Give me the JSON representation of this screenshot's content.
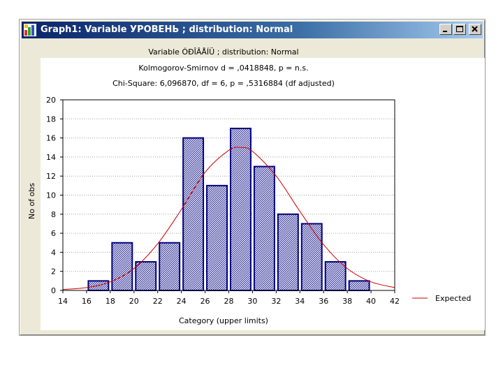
{
  "window": {
    "title": "Graph1: Variable УРОВЕНЬ ; distribution: Normal"
  },
  "chart_data": {
    "type": "bar",
    "title": "Variable ÓÐÎÂÅÍÜ ; distribution: Normal",
    "subtitle_1": "Kolmogorov-Smirnov d = ,0418848, p = n.s.",
    "subtitle_2": "Chi-Square: 6,096870, df = 6, p = ,5316884 (df adjusted)",
    "xlabel": "Category (upper limits)",
    "ylabel": "No of obs",
    "xlim": [
      14,
      42
    ],
    "ylim": [
      0,
      20
    ],
    "x_ticks": [
      14,
      16,
      18,
      20,
      22,
      24,
      26,
      28,
      30,
      32,
      34,
      36,
      38,
      40,
      42
    ],
    "y_ticks": [
      0,
      2,
      4,
      6,
      8,
      10,
      12,
      14,
      16,
      18,
      20
    ],
    "grid": true,
    "legend_position": "right",
    "bar_width": 2,
    "bars": [
      {
        "upper": 18,
        "value": 1
      },
      {
        "upper": 20,
        "value": 5
      },
      {
        "upper": 22,
        "value": 3
      },
      {
        "upper": 24,
        "value": 5
      },
      {
        "upper": 26,
        "value": 16
      },
      {
        "upper": 28,
        "value": 11
      },
      {
        "upper": 30,
        "value": 17
      },
      {
        "upper": 32,
        "value": 13
      },
      {
        "upper": 34,
        "value": 8
      },
      {
        "upper": 36,
        "value": 7
      },
      {
        "upper": 38,
        "value": 3
      },
      {
        "upper": 40,
        "value": 1
      }
    ],
    "expected": {
      "name": "Expected",
      "x": [
        14,
        16,
        18,
        20,
        22,
        24,
        26,
        28,
        29,
        30,
        32,
        34,
        36,
        38,
        40,
        42
      ],
      "y": [
        0.1,
        0.3,
        0.9,
        2.3,
        4.9,
        8.5,
        12.4,
        14.7,
        15.0,
        14.6,
        12.0,
        8.3,
        4.8,
        2.3,
        0.9,
        0.3
      ]
    },
    "colors": {
      "bar_stroke": "#000080",
      "bar_hatch": "#000080",
      "expected_line": "#cc0000",
      "grid": "#a0a0a0"
    }
  }
}
